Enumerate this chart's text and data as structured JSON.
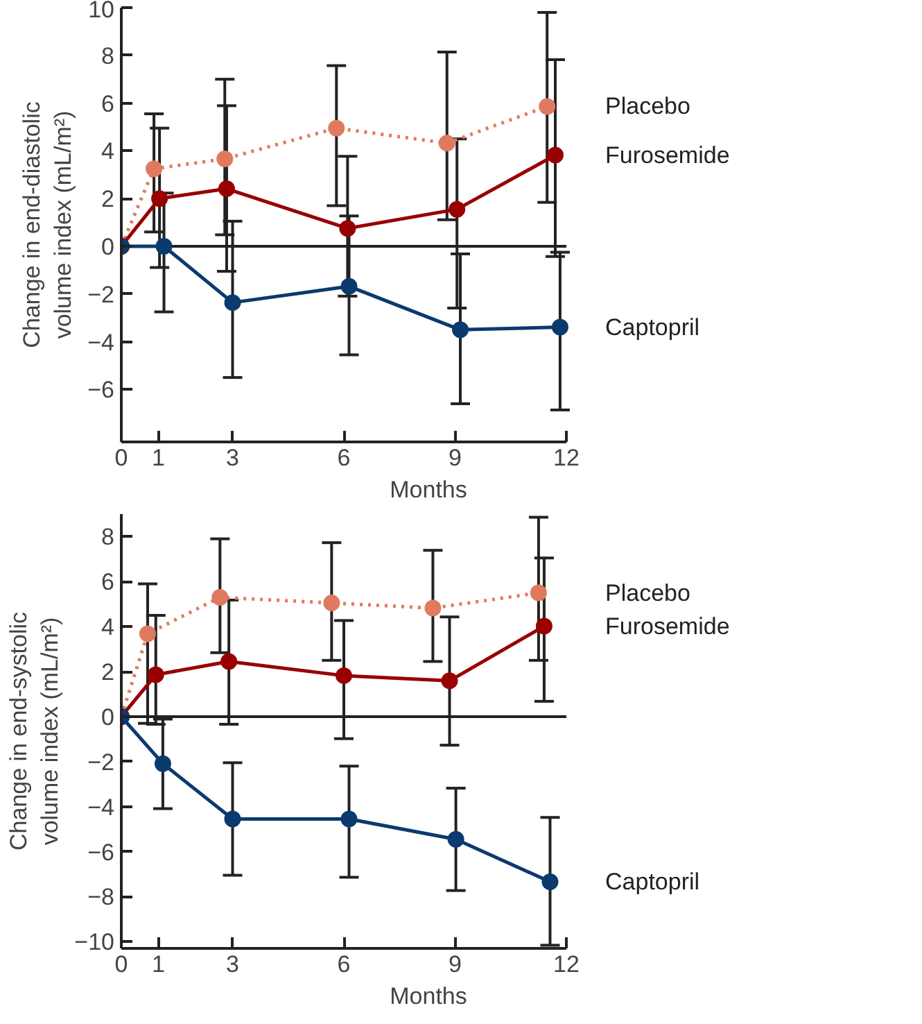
{
  "chart_data": [
    {
      "type": "line",
      "ylabel": "Change in end-diastolic\nvolume index (mL/m²)",
      "xlabel": "Months",
      "xlim": [
        0,
        12
      ],
      "xticks": [
        0,
        1,
        3,
        6,
        9,
        12
      ],
      "ylim": [
        -8.2,
        10
      ],
      "yticks": [
        -6,
        -4,
        -2,
        0,
        2,
        4,
        6,
        8,
        10
      ],
      "grid": false,
      "marker": "circle",
      "ref_lines": [
        {
          "axis": "y",
          "value": 0,
          "color": "#222222"
        }
      ],
      "series": [
        {
          "name": "Placebo",
          "color": "#e07a5f",
          "line_style": "dotted",
          "x": [
            0,
            0.88,
            2.79,
            5.8,
            8.78,
            11.48
          ],
          "values": [
            0,
            3.25,
            3.66,
            4.95,
            4.32,
            5.86
          ],
          "errors": [
            null,
            [
              0.6,
              5.55
            ],
            [
              0.48,
              7.0
            ],
            [
              1.7,
              7.57
            ],
            [
              1.11,
              8.14
            ],
            [
              1.84,
              9.8
            ]
          ]
        },
        {
          "name": "Furosemide",
          "color": "#990000",
          "line_style": "solid",
          "x": [
            0,
            1.03,
            2.84,
            6.1,
            9.05,
            11.7
          ],
          "values": [
            0,
            2.0,
            2.41,
            0.75,
            1.55,
            3.82
          ],
          "errors": [
            null,
            [
              -0.89,
              4.95
            ],
            [
              -1.05,
              5.89
            ],
            [
              -2.09,
              3.77
            ],
            [
              -2.59,
              4.5
            ],
            [
              -0.43,
              7.82
            ]
          ]
        },
        {
          "name": "Captopril",
          "color": "#0b3a6e",
          "line_style": "solid",
          "x": [
            0,
            1.15,
            3.0,
            6.14,
            9.14,
            11.83
          ],
          "values": [
            0,
            0,
            -2.36,
            -1.68,
            -3.5,
            -3.39
          ],
          "errors": [
            null,
            [
              -2.75,
              2.23
            ],
            [
              -5.5,
              1.05
            ],
            [
              -4.55,
              1.27
            ],
            [
              -6.6,
              -0.32
            ],
            [
              -6.86,
              -0.25
            ]
          ]
        }
      ]
    },
    {
      "type": "line",
      "ylabel": "Change in end-systolic\nvolume index (mL/m²)",
      "xlabel": "Months",
      "xlim": [
        0,
        12
      ],
      "xticks": [
        0,
        1,
        3,
        6,
        9,
        12
      ],
      "ylim": [
        -10.3,
        9
      ],
      "yticks": [
        -10,
        -8,
        -6,
        -4,
        -2,
        0,
        2,
        4,
        6,
        8
      ],
      "grid": false,
      "marker": "circle",
      "ref_lines": [
        {
          "axis": "y",
          "value": 0,
          "color": "#222222"
        }
      ],
      "series": [
        {
          "name": "Placebo",
          "color": "#e07a5f",
          "line_style": "dotted",
          "x": [
            0,
            0.71,
            2.66,
            5.67,
            8.4,
            11.25
          ],
          "values": [
            0,
            3.68,
            5.3,
            5.05,
            4.82,
            5.5
          ],
          "errors": [
            null,
            [
              -0.3,
              5.9
            ],
            [
              2.84,
              7.9
            ],
            [
              2.5,
              7.73
            ],
            [
              2.45,
              7.39
            ],
            [
              2.5,
              8.86
            ]
          ]
        },
        {
          "name": "Furosemide",
          "color": "#990000",
          "line_style": "solid",
          "x": [
            0,
            0.93,
            2.9,
            6.0,
            8.85,
            11.4
          ],
          "values": [
            0,
            1.86,
            2.45,
            1.82,
            1.59,
            4.02
          ],
          "errors": [
            null,
            [
              -0.34,
              4.5
            ],
            [
              -0.34,
              5.18
            ],
            [
              -0.98,
              4.27
            ],
            [
              -1.27,
              4.43
            ],
            [
              0.68,
              7.05
            ]
          ]
        },
        {
          "name": "Captopril",
          "color": "#0b3a6e",
          "line_style": "solid",
          "x": [
            0,
            1.12,
            3.0,
            6.14,
            9.02,
            11.56
          ],
          "values": [
            0,
            -2.09,
            -4.55,
            -4.55,
            -5.45,
            -7.34
          ],
          "errors": [
            null,
            [
              -4.09,
              -0.11
            ],
            [
              -7.05,
              -2.05
            ],
            [
              -7.14,
              -2.2
            ],
            [
              -7.73,
              -3.18
            ],
            [
              -10.16,
              -4.48
            ]
          ]
        }
      ]
    }
  ]
}
